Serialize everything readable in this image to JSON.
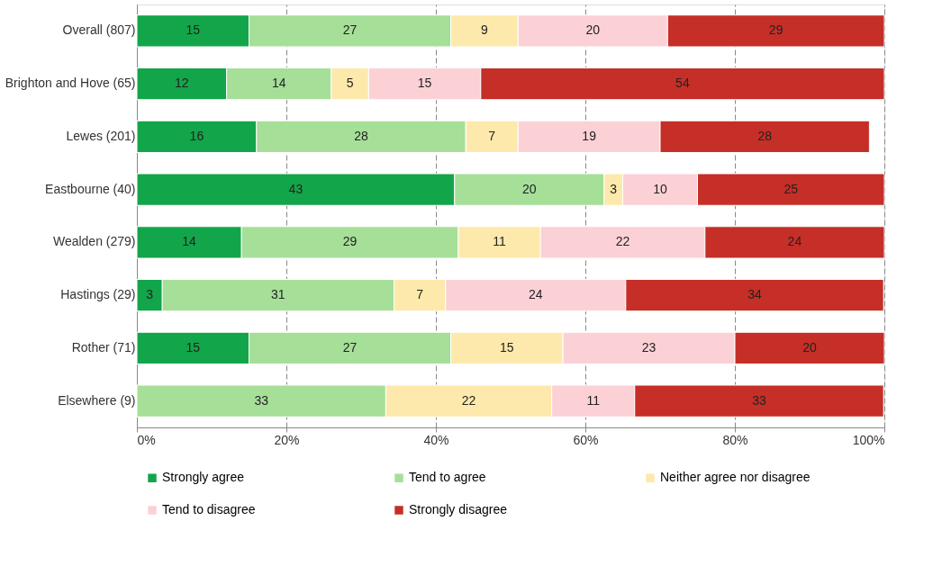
{
  "chart_data": {
    "type": "bar",
    "orientation": "horizontal",
    "stacked": true,
    "grid": "x",
    "legend": "bottom",
    "categories": [
      "Overall (807)",
      "Brighton and Hove (65)",
      "Lewes (201)",
      "Eastbourne (40)",
      "Wealden (279)",
      "Hastings (29)",
      "Rother (71)",
      "Elsewhere (9)"
    ],
    "xlim": [
      0,
      100
    ],
    "xticks": [
      {
        "value": 0,
        "label": "0%"
      },
      {
        "value": 20,
        "label": "20%"
      },
      {
        "value": 40,
        "label": "40%"
      },
      {
        "value": 60,
        "label": "60%"
      },
      {
        "value": 80,
        "label": "80%"
      },
      {
        "value": 100,
        "label": "100%"
      }
    ],
    "series": [
      {
        "name": "Strongly agree",
        "color": "#13a54a",
        "values": [
          15,
          12,
          16,
          42.5,
          14,
          3.4,
          15,
          null
        ],
        "value_labels": [
          "15",
          "12",
          "16",
          "43",
          "14",
          "3",
          "15",
          null
        ]
      },
      {
        "name": "Tend to agree",
        "color": "#a6df98",
        "values": [
          27,
          14,
          28,
          20,
          29,
          31,
          27,
          33.3
        ],
        "value_labels": [
          "27",
          "14",
          "28",
          "20",
          "29",
          "31",
          "27",
          "33"
        ]
      },
      {
        "name": "Neither agree nor disagree",
        "color": "#fde9ab",
        "values": [
          9,
          5,
          7,
          2.5,
          11,
          6.9,
          15,
          22.2
        ],
        "value_labels": [
          "9",
          "5",
          "7",
          "3",
          "11",
          "7",
          "15",
          "22"
        ]
      },
      {
        "name": "Tend to disagree",
        "color": "#fbd1d6",
        "values": [
          20,
          15,
          19,
          10,
          22,
          24.1,
          23,
          11.1
        ],
        "value_labels": [
          "20",
          "15",
          "19",
          "10",
          "22",
          "24",
          "23",
          "11"
        ]
      },
      {
        "name": "Strongly disagree",
        "color": "#c52f27",
        "values": [
          29,
          54,
          28,
          25,
          24,
          34.5,
          20,
          33.3
        ],
        "value_labels": [
          "29",
          "54",
          "28",
          "25",
          "24",
          "34",
          "20",
          "33"
        ]
      }
    ]
  }
}
